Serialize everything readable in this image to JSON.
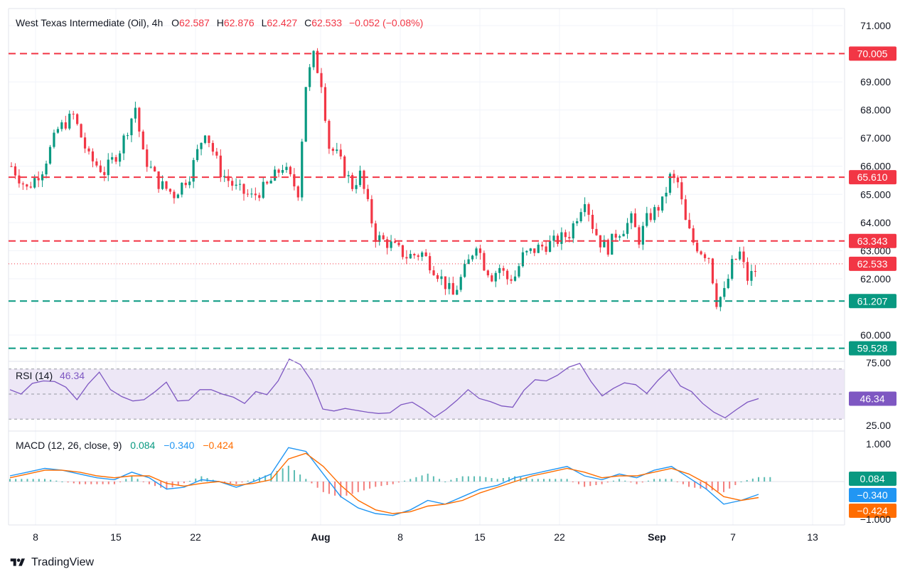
{
  "header": {
    "symbol": "West Texas Intermediate (Oil), 4h",
    "o_label": "O",
    "o_value": "62.587",
    "h_label": "H",
    "h_value": "62.876",
    "l_label": "L",
    "l_value": "62.427",
    "c_label": "C",
    "c_value": "62.533",
    "change": "−0.052 (−0.08%)"
  },
  "brand": {
    "name": "TradingView"
  },
  "colors": {
    "up": "#089981",
    "down": "#f23645",
    "rsi": "#7e57c2",
    "rsi_band": "#ede7f6",
    "macd": "#2196f3",
    "signal": "#ff6d00",
    "hist_up": "#26a69a",
    "hist_down": "#ef5350",
    "grid": "#f0f3fa",
    "axis_text": "#131722"
  },
  "chart_data": [
    {
      "type": "candlestick",
      "title": "West Texas Intermediate (Oil), 4h",
      "ylim": [
        59.5,
        71.0
      ],
      "y_ticks": [
        "71.000",
        "69.000",
        "68.000",
        "67.000",
        "66.000",
        "65.000",
        "64.000",
        "63.000",
        "62.000",
        "60.000"
      ],
      "x_ticks": [
        "8",
        "15",
        "22",
        "Aug",
        "8",
        "15",
        "22",
        "Sep",
        "7",
        "13"
      ],
      "close_path": [
        [
          0,
          66.0
        ],
        [
          2,
          65.2
        ],
        [
          4,
          65.9
        ],
        [
          6,
          67.3
        ],
        [
          8,
          67.8
        ],
        [
          10,
          66.3
        ],
        [
          12,
          65.8
        ],
        [
          14,
          66.6
        ],
        [
          16,
          68.1
        ],
        [
          17,
          66.4
        ],
        [
          19,
          65.4
        ],
        [
          21,
          65.0
        ],
        [
          23,
          65.7
        ],
        [
          25,
          67.3
        ],
        [
          27,
          65.8
        ],
        [
          29,
          65.2
        ],
        [
          31,
          64.9
        ],
        [
          33,
          65.3
        ],
        [
          35,
          66.0
        ],
        [
          37,
          65.1
        ],
        [
          38,
          68.9
        ],
        [
          39,
          69.9
        ],
        [
          40,
          69.0
        ],
        [
          41,
          66.7
        ],
        [
          42,
          66.4
        ],
        [
          44,
          65.3
        ],
        [
          45,
          65.7
        ],
        [
          47,
          63.5
        ],
        [
          49,
          63.2
        ],
        [
          51,
          62.8
        ],
        [
          53,
          62.9
        ],
        [
          55,
          62.2
        ],
        [
          57,
          61.4
        ],
        [
          58,
          62.0
        ],
        [
          59,
          62.6
        ],
        [
          60,
          63.3
        ],
        [
          61,
          62.5
        ],
        [
          62,
          62.1
        ],
        [
          63,
          62.4
        ],
        [
          64,
          62.0
        ],
        [
          65,
          62.1
        ],
        [
          66,
          62.8
        ],
        [
          68,
          63.1
        ],
        [
          70,
          63.3
        ],
        [
          72,
          63.6
        ],
        [
          74,
          64.9
        ],
        [
          75,
          63.9
        ],
        [
          76,
          63.3
        ],
        [
          77,
          63.1
        ],
        [
          78,
          63.6
        ],
        [
          79,
          63.8
        ],
        [
          80,
          64.1
        ],
        [
          81,
          63.4
        ],
        [
          82,
          64.1
        ],
        [
          84,
          64.7
        ],
        [
          85,
          65.6
        ],
        [
          86,
          65.4
        ],
        [
          87,
          64.0
        ],
        [
          88,
          63.3
        ],
        [
          89,
          63.0
        ],
        [
          90,
          62.8
        ],
        [
          91,
          61.2
        ],
        [
          92,
          61.5
        ],
        [
          93,
          62.5
        ],
        [
          94,
          62.9
        ],
        [
          95,
          62.0
        ],
        [
          96,
          62.3
        ],
        [
          97,
          62.533
        ]
      ],
      "horizontal_levels": [
        {
          "label": "70.005",
          "value": 70.005,
          "color": "#f23645"
        },
        {
          "label": "65.610",
          "value": 65.61,
          "color": "#f23645"
        },
        {
          "label": "63.343",
          "value": 63.343,
          "color": "#f23645"
        },
        {
          "label": "62.533",
          "value": 62.533,
          "color": "#f23645",
          "style": "dotted"
        },
        {
          "label": "61.207",
          "value": 61.207,
          "color": "#089981"
        },
        {
          "label": "59.528",
          "value": 59.528,
          "color": "#089981"
        }
      ]
    },
    {
      "type": "line",
      "title": "RSI (14)",
      "last_value": "46.34",
      "ylim": [
        25,
        75
      ],
      "y_ticks": [
        "75.00",
        "25.00"
      ],
      "band": [
        30,
        70
      ],
      "values": [
        55,
        50,
        57,
        62,
        60,
        54,
        47,
        58,
        66,
        55,
        48,
        43,
        47,
        52,
        58,
        46,
        45,
        52,
        55,
        50,
        46,
        44,
        52,
        48,
        62,
        78,
        72,
        62,
        38,
        35,
        40,
        37,
        34,
        36,
        35,
        40,
        45,
        38,
        30,
        39,
        45,
        52,
        48,
        44,
        39,
        41,
        53,
        60,
        62,
        65,
        70,
        76,
        60,
        47,
        56,
        59,
        56,
        52,
        61,
        68,
        58,
        52,
        41,
        37,
        31,
        36,
        45,
        46.34
      ]
    },
    {
      "type": "line",
      "title": "MACD (12, 26, close, 9)",
      "macd_label": "0.084",
      "macd_line_label": "−0.340",
      "signal_label": "−0.424",
      "ylim": [
        -1.0,
        1.0
      ],
      "y_ticks": [
        "1.000",
        "−1.000"
      ],
      "macd": [
        0.15,
        0.25,
        0.35,
        0.3,
        0.2,
        0.1,
        0.05,
        0.25,
        0.1,
        -0.2,
        -0.15,
        0.05,
        0.0,
        -0.15,
        0.0,
        0.2,
        0.9,
        0.8,
        0.2,
        -0.4,
        -0.7,
        -0.85,
        -0.9,
        -0.75,
        -0.5,
        -0.6,
        -0.4,
        -0.2,
        -0.1,
        0.1,
        0.2,
        0.3,
        0.4,
        0.15,
        0.05,
        0.2,
        0.1,
        0.3,
        0.4,
        0.1,
        -0.2,
        -0.6,
        -0.5,
        -0.34
      ],
      "signal": [
        0.1,
        0.2,
        0.3,
        0.3,
        0.25,
        0.15,
        0.1,
        0.15,
        0.15,
        -0.05,
        -0.12,
        -0.05,
        0.0,
        -0.1,
        -0.05,
        0.05,
        0.6,
        0.75,
        0.4,
        -0.1,
        -0.5,
        -0.75,
        -0.85,
        -0.8,
        -0.65,
        -0.6,
        -0.5,
        -0.3,
        -0.15,
        0.0,
        0.15,
        0.25,
        0.35,
        0.25,
        0.1,
        0.15,
        0.15,
        0.25,
        0.35,
        0.2,
        -0.05,
        -0.4,
        -0.5,
        -0.424
      ]
    }
  ]
}
